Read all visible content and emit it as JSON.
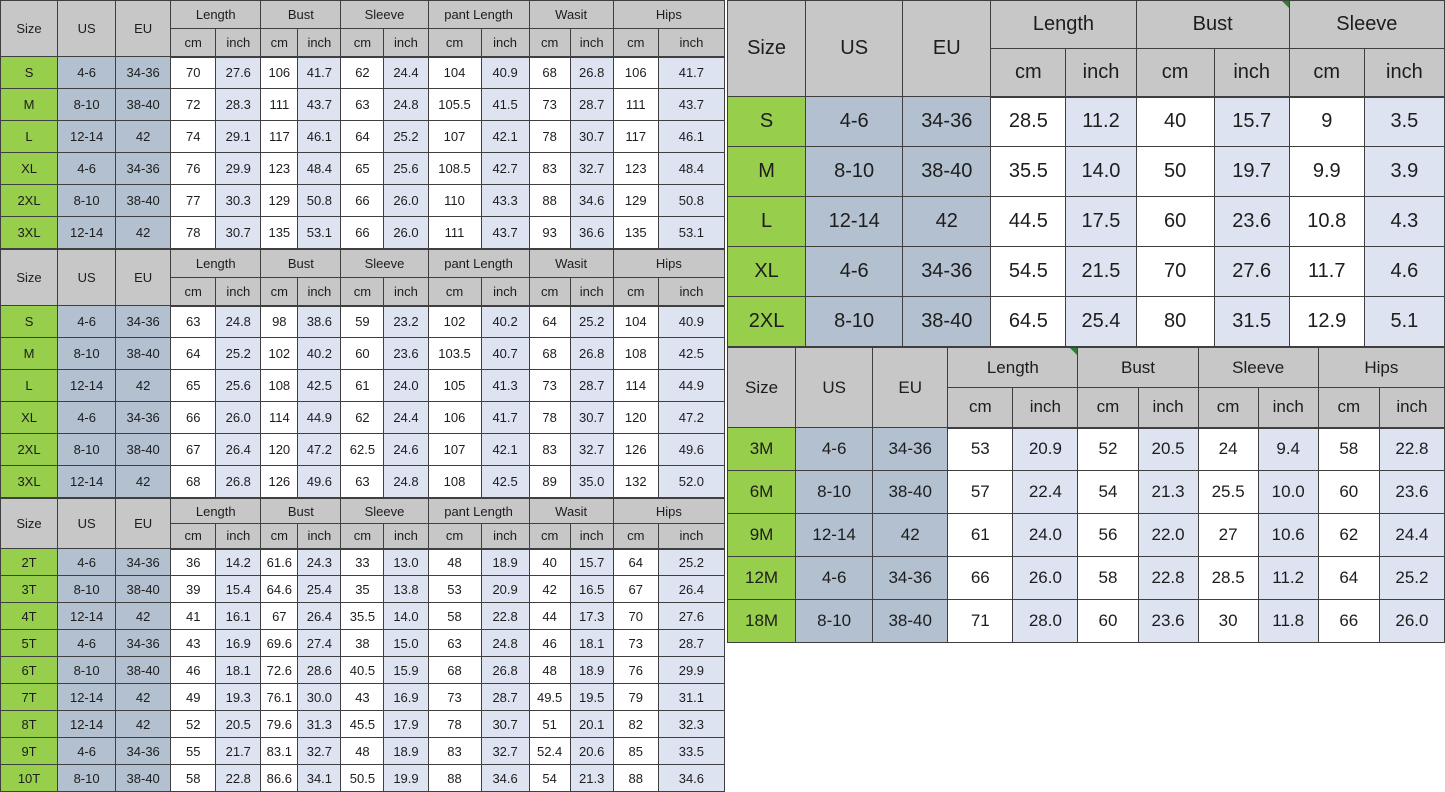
{
  "colors": {
    "header_bg": "#c7c7c7",
    "size_column_green": "#97ce4c",
    "us_eu_column_blue_gray": "#b3c0cf",
    "inch_column_lavender": "#dee3f2",
    "cm_column_white": "#ffffff",
    "grid_border": "#3f3f3f",
    "excel_marker_green": "#2e7d32"
  },
  "tables": {
    "left1": {
      "corner_cols": [
        "Size",
        "US",
        "EU"
      ],
      "groups": [
        "Length",
        "Bust",
        "Sleeve",
        "pant Length",
        "Wasit",
        "Hips"
      ],
      "unit_cm": "cm",
      "unit_inch": "inch",
      "rows": [
        {
          "size": "S",
          "us": "4-6",
          "eu": "34-36",
          "values": [
            "70",
            "27.6",
            "106",
            "41.7",
            "62",
            "24.4",
            "104",
            "40.9",
            "68",
            "26.8",
            "106",
            "41.7"
          ]
        },
        {
          "size": "M",
          "us": "8-10",
          "eu": "38-40",
          "values": [
            "72",
            "28.3",
            "111",
            "43.7",
            "63",
            "24.8",
            "105.5",
            "41.5",
            "73",
            "28.7",
            "111",
            "43.7"
          ]
        },
        {
          "size": "L",
          "us": "12-14",
          "eu": "42",
          "values": [
            "74",
            "29.1",
            "117",
            "46.1",
            "64",
            "25.2",
            "107",
            "42.1",
            "78",
            "30.7",
            "117",
            "46.1"
          ]
        },
        {
          "size": "XL",
          "us": "4-6",
          "eu": "34-36",
          "values": [
            "76",
            "29.9",
            "123",
            "48.4",
            "65",
            "25.6",
            "108.5",
            "42.7",
            "83",
            "32.7",
            "123",
            "48.4"
          ]
        },
        {
          "size": "2XL",
          "us": "8-10",
          "eu": "38-40",
          "values": [
            "77",
            "30.3",
            "129",
            "50.8",
            "66",
            "26.0",
            "110",
            "43.3",
            "88",
            "34.6",
            "129",
            "50.8"
          ]
        },
        {
          "size": "3XL",
          "us": "12-14",
          "eu": "42",
          "values": [
            "78",
            "30.7",
            "135",
            "53.1",
            "66",
            "26.0",
            "111",
            "43.7",
            "93",
            "36.6",
            "135",
            "53.1"
          ]
        }
      ]
    },
    "left2": {
      "corner_cols": [
        "Size",
        "US",
        "EU"
      ],
      "groups": [
        "Length",
        "Bust",
        "Sleeve",
        "pant Length",
        "Wasit",
        "Hips"
      ],
      "unit_cm": "cm",
      "unit_inch": "inch",
      "rows": [
        {
          "size": "S",
          "us": "4-6",
          "eu": "34-36",
          "values": [
            "63",
            "24.8",
            "98",
            "38.6",
            "59",
            "23.2",
            "102",
            "40.2",
            "64",
            "25.2",
            "104",
            "40.9"
          ]
        },
        {
          "size": "M",
          "us": "8-10",
          "eu": "38-40",
          "values": [
            "64",
            "25.2",
            "102",
            "40.2",
            "60",
            "23.6",
            "103.5",
            "40.7",
            "68",
            "26.8",
            "108",
            "42.5"
          ]
        },
        {
          "size": "L",
          "us": "12-14",
          "eu": "42",
          "values": [
            "65",
            "25.6",
            "108",
            "42.5",
            "61",
            "24.0",
            "105",
            "41.3",
            "73",
            "28.7",
            "114",
            "44.9"
          ]
        },
        {
          "size": "XL",
          "us": "4-6",
          "eu": "34-36",
          "values": [
            "66",
            "26.0",
            "114",
            "44.9",
            "62",
            "24.4",
            "106",
            "41.7",
            "78",
            "30.7",
            "120",
            "47.2"
          ]
        },
        {
          "size": "2XL",
          "us": "8-10",
          "eu": "38-40",
          "values": [
            "67",
            "26.4",
            "120",
            "47.2",
            "62.5",
            "24.6",
            "107",
            "42.1",
            "83",
            "32.7",
            "126",
            "49.6"
          ]
        },
        {
          "size": "3XL",
          "us": "12-14",
          "eu": "42",
          "values": [
            "68",
            "26.8",
            "126",
            "49.6",
            "63",
            "24.8",
            "108",
            "42.5",
            "89",
            "35.0",
            "132",
            "52.0"
          ]
        }
      ]
    },
    "left3": {
      "corner_cols": [
        "Size",
        "US",
        "EU"
      ],
      "groups": [
        "Length",
        "Bust",
        "Sleeve",
        "pant Length",
        "Wasit",
        "Hips"
      ],
      "unit_cm": "cm",
      "unit_inch": "inch",
      "rows": [
        {
          "size": "2T",
          "us": "4-6",
          "eu": "34-36",
          "values": [
            "36",
            "14.2",
            "61.6",
            "24.3",
            "33",
            "13.0",
            "48",
            "18.9",
            "40",
            "15.7",
            "64",
            "25.2"
          ]
        },
        {
          "size": "3T",
          "us": "8-10",
          "eu": "38-40",
          "values": [
            "39",
            "15.4",
            "64.6",
            "25.4",
            "35",
            "13.8",
            "53",
            "20.9",
            "42",
            "16.5",
            "67",
            "26.4"
          ]
        },
        {
          "size": "4T",
          "us": "12-14",
          "eu": "42",
          "values": [
            "41",
            "16.1",
            "67",
            "26.4",
            "35.5",
            "14.0",
            "58",
            "22.8",
            "44",
            "17.3",
            "70",
            "27.6"
          ]
        },
        {
          "size": "5T",
          "us": "4-6",
          "eu": "34-36",
          "values": [
            "43",
            "16.9",
            "69.6",
            "27.4",
            "38",
            "15.0",
            "63",
            "24.8",
            "46",
            "18.1",
            "73",
            "28.7"
          ]
        },
        {
          "size": "6T",
          "us": "8-10",
          "eu": "38-40",
          "values": [
            "46",
            "18.1",
            "72.6",
            "28.6",
            "40.5",
            "15.9",
            "68",
            "26.8",
            "48",
            "18.9",
            "76",
            "29.9"
          ]
        },
        {
          "size": "7T",
          "us": "12-14",
          "eu": "42",
          "values": [
            "49",
            "19.3",
            "76.1",
            "30.0",
            "43",
            "16.9",
            "73",
            "28.7",
            "49.5",
            "19.5",
            "79",
            "31.1"
          ]
        },
        {
          "size": "8T",
          "us": "12-14",
          "eu": "42",
          "values": [
            "52",
            "20.5",
            "79.6",
            "31.3",
            "45.5",
            "17.9",
            "78",
            "30.7",
            "51",
            "20.1",
            "82",
            "32.3"
          ]
        },
        {
          "size": "9T",
          "us": "4-6",
          "eu": "34-36",
          "values": [
            "55",
            "21.7",
            "83.1",
            "32.7",
            "48",
            "18.9",
            "83",
            "32.7",
            "52.4",
            "20.6",
            "85",
            "33.5"
          ]
        },
        {
          "size": "10T",
          "us": "8-10",
          "eu": "38-40",
          "values": [
            "58",
            "22.8",
            "86.6",
            "34.1",
            "50.5",
            "19.9",
            "88",
            "34.6",
            "54",
            "21.3",
            "88",
            "34.6"
          ]
        }
      ]
    },
    "right1": {
      "corner_cols": [
        "Size",
        "US",
        "EU"
      ],
      "groups": [
        "Length",
        "Bust",
        "Sleeve"
      ],
      "unit_cm": "cm",
      "unit_inch": "inch",
      "rows": [
        {
          "size": "S",
          "us": "4-6",
          "eu": "34-36",
          "values": [
            "28.5",
            "11.2",
            "40",
            "15.7",
            "9",
            "3.5"
          ]
        },
        {
          "size": "M",
          "us": "8-10",
          "eu": "38-40",
          "values": [
            "35.5",
            "14.0",
            "50",
            "19.7",
            "9.9",
            "3.9"
          ]
        },
        {
          "size": "L",
          "us": "12-14",
          "eu": "42",
          "values": [
            "44.5",
            "17.5",
            "60",
            "23.6",
            "10.8",
            "4.3"
          ]
        },
        {
          "size": "XL",
          "us": "4-6",
          "eu": "34-36",
          "values": [
            "54.5",
            "21.5",
            "70",
            "27.6",
            "11.7",
            "4.6"
          ]
        },
        {
          "size": "2XL",
          "us": "8-10",
          "eu": "38-40",
          "values": [
            "64.5",
            "25.4",
            "80",
            "31.5",
            "12.9",
            "5.1"
          ]
        }
      ]
    },
    "right2": {
      "corner_cols": [
        "Size",
        "US",
        "EU"
      ],
      "groups": [
        "Length",
        "Bust",
        "Sleeve",
        "Hips"
      ],
      "unit_cm": "cm",
      "unit_inch": "inch",
      "rows": [
        {
          "size": "3M",
          "us": "4-6",
          "eu": "34-36",
          "values": [
            "53",
            "20.9",
            "52",
            "20.5",
            "24",
            "9.4",
            "58",
            "22.8"
          ]
        },
        {
          "size": "6M",
          "us": "8-10",
          "eu": "38-40",
          "values": [
            "57",
            "22.4",
            "54",
            "21.3",
            "25.5",
            "10.0",
            "60",
            "23.6"
          ]
        },
        {
          "size": "9M",
          "us": "12-14",
          "eu": "42",
          "values": [
            "61",
            "24.0",
            "56",
            "22.0",
            "27",
            "10.6",
            "62",
            "24.4"
          ]
        },
        {
          "size": "12M",
          "us": "4-6",
          "eu": "34-36",
          "values": [
            "66",
            "26.0",
            "58",
            "22.8",
            "28.5",
            "11.2",
            "64",
            "25.2"
          ]
        },
        {
          "size": "18M",
          "us": "8-10",
          "eu": "38-40",
          "values": [
            "71",
            "28.0",
            "60",
            "23.6",
            "30",
            "11.8",
            "66",
            "26.0"
          ]
        }
      ]
    }
  }
}
